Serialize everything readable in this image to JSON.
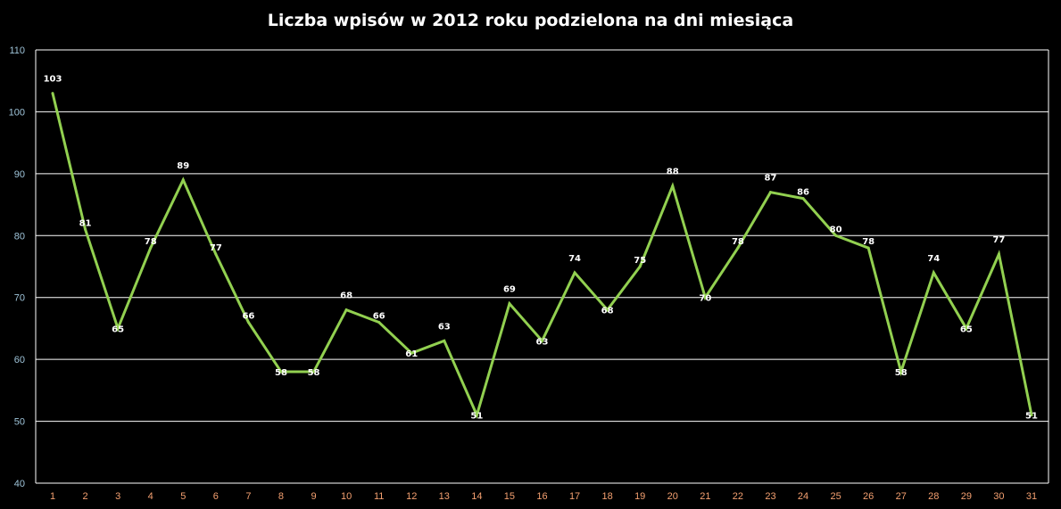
{
  "chart_data": {
    "type": "line",
    "title": "Liczba wpisów w 2012 roku podzielona na dni miesiąca",
    "xlabel": "",
    "ylabel": "",
    "categories": [
      "1",
      "2",
      "3",
      "4",
      "5",
      "6",
      "7",
      "8",
      "9",
      "10",
      "11",
      "12",
      "13",
      "14",
      "15",
      "16",
      "17",
      "18",
      "19",
      "20",
      "21",
      "22",
      "23",
      "24",
      "25",
      "26",
      "27",
      "28",
      "29",
      "30",
      "31"
    ],
    "series": [
      {
        "values": [
          103,
          81,
          65,
          78,
          89,
          77,
          66,
          58,
          58,
          68,
          66,
          61,
          63,
          51,
          69,
          63,
          74,
          68,
          75,
          88,
          70,
          78,
          87,
          86,
          80,
          78,
          58,
          74,
          65,
          77,
          51
        ]
      }
    ],
    "ylim": [
      40,
      110
    ],
    "yticks": [
      40,
      50,
      60,
      70,
      80,
      90,
      100,
      110
    ],
    "grid": true,
    "legend": "none",
    "colors": {
      "background": "#000000",
      "line": "#92d050",
      "grid": "#ffffff",
      "y_tick_text": "#9ec3d8",
      "x_tick_text": "#f4a070",
      "label_text": "#ffffff"
    }
  }
}
